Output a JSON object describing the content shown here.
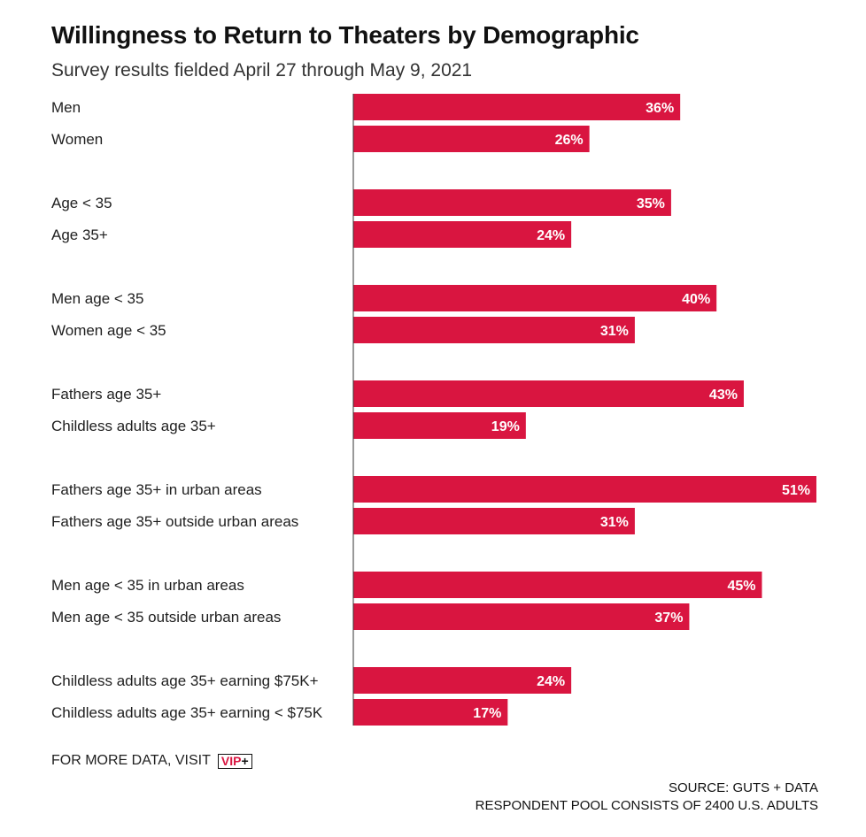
{
  "header": {
    "title": "Willingness to Return to Theaters by Demographic",
    "subtitle": "Survey results fielded April 27 through May 9, 2021"
  },
  "colors": {
    "bar": "#d91540",
    "axis": "#333333",
    "text": "#1f1f1f"
  },
  "chart_data": {
    "type": "bar",
    "orientation": "horizontal",
    "title": "Willingness to Return to Theaters by Demographic",
    "subtitle": "Survey results fielded April 27 through May 9, 2021",
    "value_suffix": "%",
    "groups": [
      {
        "categories": [
          "Men",
          "Women"
        ],
        "values": [
          36,
          26
        ]
      },
      {
        "categories": [
          "Age < 35",
          "Age 35+"
        ],
        "values": [
          35,
          24
        ]
      },
      {
        "categories": [
          "Men age < 35",
          "Women age < 35"
        ],
        "values": [
          40,
          31
        ]
      },
      {
        "categories": [
          "Fathers age 35+",
          "Childless adults age 35+"
        ],
        "values": [
          43,
          19
        ]
      },
      {
        "categories": [
          "Fathers age 35+ in urban areas",
          "Fathers age 35+ outside urban areas"
        ],
        "values": [
          51,
          31
        ]
      },
      {
        "categories": [
          "Men age < 35 in urban areas",
          "Men age < 35 outside urban areas"
        ],
        "values": [
          45,
          37
        ]
      },
      {
        "categories": [
          "Childless adults age 35+ earning $75K+",
          "Childless adults age 35+ earning < $75K"
        ],
        "values": [
          24,
          17
        ]
      }
    ],
    "xlim": [
      0,
      51
    ],
    "grid": false,
    "legend": "none"
  },
  "footer": {
    "more_data": "FOR MORE DATA, VISIT",
    "vip_text": "VIP",
    "vip_plus": "+",
    "source": "SOURCE: GUTS + DATA",
    "respondents": "RESPONDENT POOL CONSISTS OF 2400 U.S. ADULTS"
  }
}
